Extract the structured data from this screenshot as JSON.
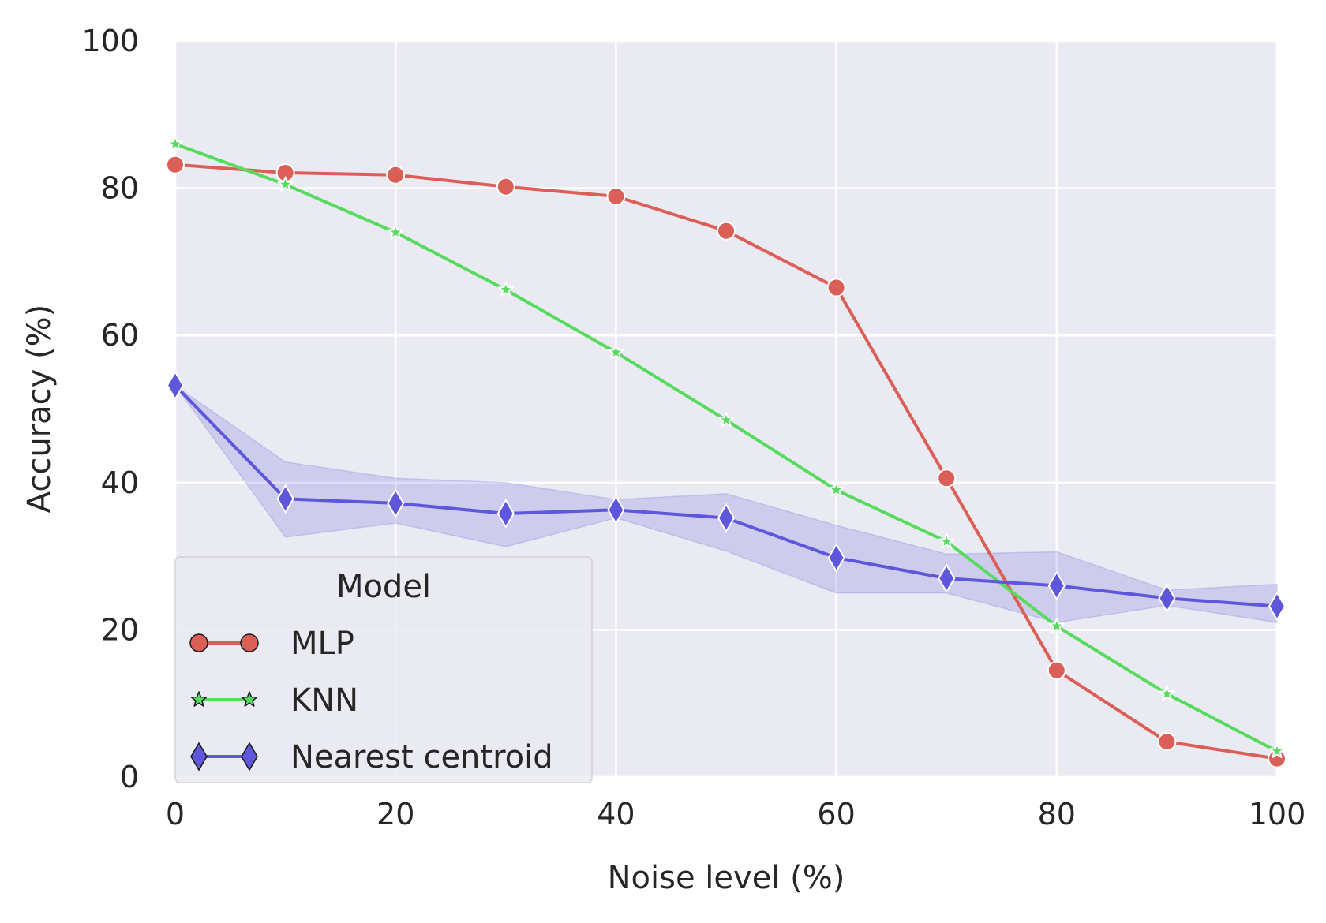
{
  "chart_data": {
    "type": "line",
    "title": "",
    "xlabel": "Noise level (%)",
    "ylabel": "Accuracy (%)",
    "xlim": [
      0,
      100
    ],
    "ylim": [
      0,
      100
    ],
    "xticks": [
      0,
      20,
      40,
      60,
      80,
      100
    ],
    "yticks": [
      0,
      20,
      40,
      60,
      80,
      100
    ],
    "grid": true,
    "x": [
      0,
      10,
      20,
      30,
      40,
      50,
      60,
      70,
      80,
      90,
      100
    ],
    "series": [
      {
        "name": "MLP",
        "color": "#db5f57",
        "marker": "circle",
        "values": [
          83.2,
          82.1,
          81.8,
          80.2,
          78.9,
          74.2,
          66.5,
          40.6,
          14.5,
          4.8,
          2.5
        ]
      },
      {
        "name": "KNN",
        "color": "#57db5f",
        "marker": "star",
        "values": [
          86.0,
          80.5,
          74.0,
          66.2,
          57.7,
          48.5,
          39.0,
          32.0,
          20.5,
          11.3,
          3.5
        ]
      },
      {
        "name": "Nearest centroid",
        "color": "#5f57db",
        "marker": "diamond",
        "values": [
          53.2,
          37.8,
          37.2,
          35.8,
          36.3,
          35.2,
          29.8,
          27.0,
          26.0,
          24.3,
          23.2
        ],
        "band_lower": [
          53.2,
          32.6,
          34.5,
          31.3,
          35.2,
          30.7,
          25.0,
          25.0,
          21.0,
          23.3,
          21.0
        ],
        "band_upper": [
          53.2,
          42.8,
          40.6,
          40.0,
          37.7,
          38.5,
          34.2,
          30.3,
          30.6,
          25.4,
          26.2
        ]
      }
    ],
    "legend": {
      "title": "Model",
      "placement": "lower-left"
    }
  }
}
